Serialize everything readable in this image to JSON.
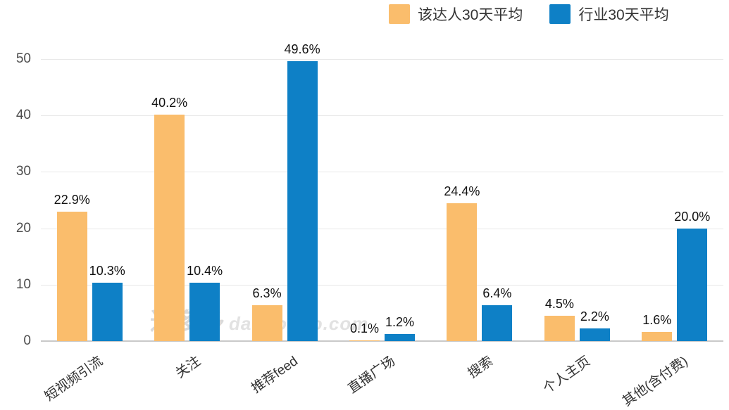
{
  "legend": {
    "position": "top",
    "items": [
      {
        "label": "该达人30天平均",
        "color": "#FABD6C"
      },
      {
        "label": "行业30天平均",
        "color": "#0E80C6"
      }
    ]
  },
  "watermark": {
    "brand": "达多多",
    "domain": "daduoduo.com"
  },
  "chart_data": {
    "type": "bar",
    "title": "",
    "xlabel": "",
    "ylabel": "",
    "categories": [
      "短视频引流",
      "关注",
      "推荐feed",
      "直播广场",
      "搜索",
      "个人主页",
      "其他(含付费)"
    ],
    "series": [
      {
        "name": "该达人30天平均",
        "color": "#FABD6C",
        "values": [
          22.9,
          40.2,
          6.3,
          0.1,
          24.4,
          4.5,
          1.6
        ]
      },
      {
        "name": "行业30天平均",
        "color": "#0E80C6",
        "values": [
          10.3,
          10.4,
          49.6,
          1.2,
          6.4,
          2.2,
          20.0
        ]
      }
    ],
    "yticks": [
      0,
      10,
      20,
      30,
      40,
      50
    ],
    "ylim": [
      0,
      50
    ],
    "value_suffix": "%",
    "grid": "horizontal",
    "legend_position": "top"
  }
}
